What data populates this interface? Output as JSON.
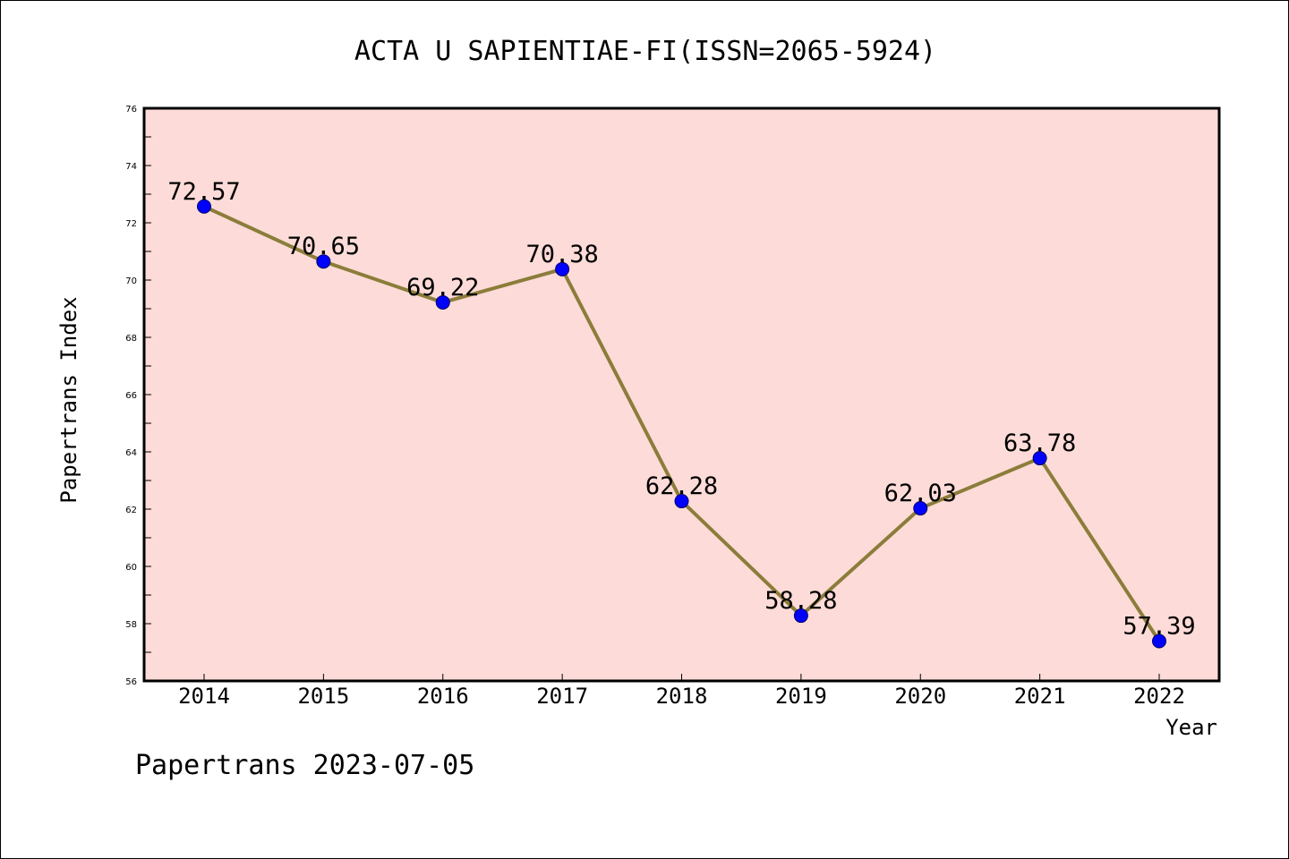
{
  "chart_data": {
    "type": "line",
    "title": "ACTA U SAPIENTIAE-FI(ISSN=2065-5924)",
    "xlabel": "Year",
    "ylabel": "Papertrans Index",
    "x": [
      "2014",
      "2015",
      "2016",
      "2017",
      "2018",
      "2019",
      "2020",
      "2021",
      "2022"
    ],
    "series": [
      {
        "values": [
          72.57,
          70.65,
          69.22,
          70.38,
          62.28,
          58.28,
          62.03,
          63.78,
          57.39
        ],
        "data_labels": [
          "72.57",
          "70.65",
          "69.22",
          "70.38",
          "62.28",
          "58.28",
          "62.03",
          "63.78",
          "57.39"
        ]
      }
    ],
    "ylim": [
      56,
      76
    ],
    "yticks": [
      56,
      58,
      60,
      62,
      64,
      66,
      68,
      70,
      72,
      74,
      76
    ],
    "ytick_labels": [
      "56",
      "58",
      "60",
      "62",
      "64",
      "66",
      "68",
      "70",
      "72",
      "74",
      "76"
    ],
    "grid": false,
    "colors": {
      "plot_background": "#fddbd8",
      "line": "#8b7d3a",
      "marker": "#0000ff"
    }
  },
  "footer": {
    "text": "Papertrans 2023-07-05"
  }
}
